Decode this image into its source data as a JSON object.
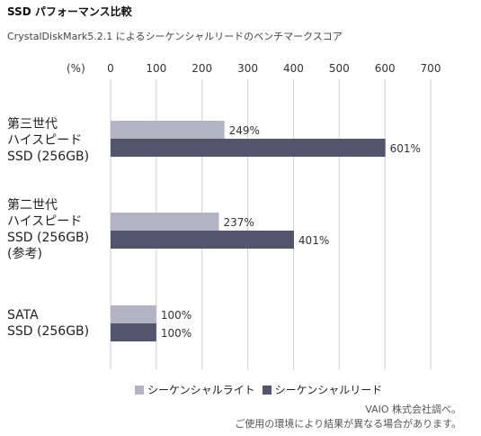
{
  "title": "SSD パフォーマンス比較",
  "subtitle": "CrystalDiskMark5.2.1 によるシーケンシャルリードのベンチマークスコア",
  "colors": {
    "write": "#b3b3c3",
    "read": "#55546d",
    "grid": "#cfcfd6"
  },
  "chart_data": {
    "type": "bar",
    "orientation": "horizontal",
    "x_unit_label": "(%)",
    "xlim": [
      0,
      700
    ],
    "ticks": [
      0,
      100,
      200,
      300,
      400,
      500,
      600,
      700
    ],
    "categories": [
      {
        "lines": [
          "第三世代",
          "ハイスピード",
          "SSD (256GB)"
        ]
      },
      {
        "lines": [
          "第二世代",
          "ハイスピード",
          "SSD (256GB)",
          "(参考)"
        ]
      },
      {
        "lines": [
          "SATA",
          "SSD (256GB)"
        ]
      }
    ],
    "series": [
      {
        "name": "シーケンシャルライト",
        "values": [
          249,
          237,
          100
        ],
        "labels": [
          "249%",
          "237%",
          "100%"
        ]
      },
      {
        "name": "シーケンシャルリード",
        "values": [
          601,
          401,
          100
        ],
        "labels": [
          "601%",
          "401%",
          "100%"
        ]
      }
    ],
    "grid": true,
    "legend": "bottom"
  },
  "notes": {
    "line1": "VAIO 株式会社調べ。",
    "line2": "ご使用の環境により結果が異なる場合があります。"
  }
}
